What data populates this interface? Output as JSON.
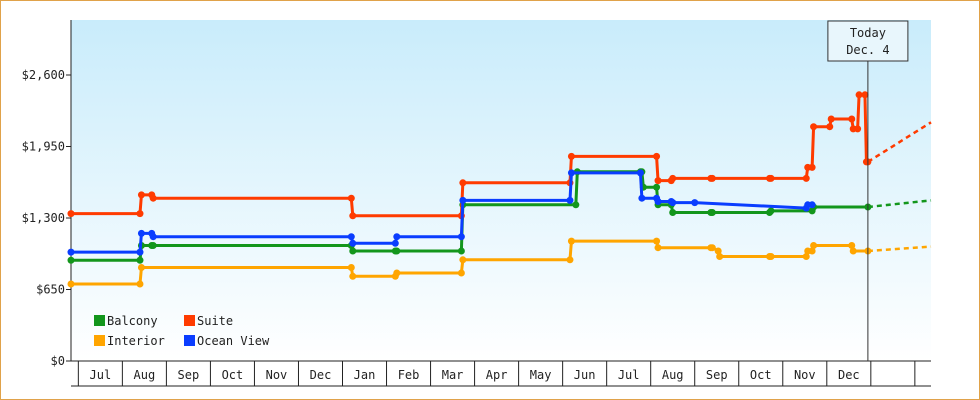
{
  "chart_data": {
    "type": "line",
    "step": true,
    "ylim": [
      0,
      3100
    ],
    "y_ticks": [
      0,
      650,
      1300,
      1950,
      2600
    ],
    "y_tick_labels": [
      "$0",
      "$650",
      "$1,300",
      "$1,950",
      "$2,600"
    ],
    "x_start": "2020-06-09",
    "x_end": "2022-01-16",
    "x_month_boundaries": [
      "2020-06-14",
      "2020-07-14",
      "2020-08-13",
      "2020-09-12",
      "2020-10-12",
      "2020-11-11",
      "2020-12-11",
      "2021-01-10",
      "2021-02-09",
      "2021-03-11",
      "2021-04-10",
      "2021-05-10",
      "2021-06-09",
      "2021-07-09",
      "2021-08-08",
      "2021-09-07",
      "2021-10-07",
      "2021-11-06",
      "2021-12-06",
      "2022-01-05"
    ],
    "x_month_labels": [
      "Jul",
      "Aug",
      "Sep",
      "Oct",
      "Nov",
      "Dec",
      "Jan",
      "Feb",
      "Mar",
      "Apr",
      "May",
      "Jun",
      "Jul",
      "Aug",
      "Sep",
      "Oct",
      "Nov",
      "Dec"
    ],
    "today": {
      "date": "2021-12-04",
      "line1": "Today",
      "line2": "Dec. 4"
    },
    "legend": [
      {
        "name": "Balcony",
        "color": "#13961c"
      },
      {
        "name": "Suite",
        "color": "#ff3b00"
      },
      {
        "name": "Interior",
        "color": "#ffa500"
      },
      {
        "name": "Ocean View",
        "color": "#0a3dff"
      }
    ],
    "series": [
      {
        "name": "Balcony",
        "color": "#13961c",
        "points": [
          [
            "2020-06-09",
            916
          ],
          [
            "2020-07-26",
            916
          ],
          [
            "2020-07-27",
            1050
          ],
          [
            "2020-08-03",
            1050
          ],
          [
            "2020-08-04",
            1050
          ],
          [
            "2020-12-17",
            1050
          ],
          [
            "2020-12-18",
            1000
          ],
          [
            "2021-01-16",
            1000
          ],
          [
            "2021-01-17",
            1000
          ],
          [
            "2021-03-02",
            1000
          ],
          [
            "2021-03-03",
            1420
          ],
          [
            "2021-05-19",
            1420
          ],
          [
            "2021-05-20",
            1720
          ],
          [
            "2021-07-02",
            1720
          ],
          [
            "2021-07-03",
            1720
          ],
          [
            "2021-07-04",
            1580
          ],
          [
            "2021-07-13",
            1580
          ],
          [
            "2021-07-14",
            1420
          ],
          [
            "2021-07-23",
            1420
          ],
          [
            "2021-07-24",
            1350
          ],
          [
            "2021-08-19",
            1350
          ],
          [
            "2021-08-20",
            1350
          ],
          [
            "2021-09-28",
            1350
          ],
          [
            "2021-09-29",
            1365
          ],
          [
            "2021-10-27",
            1365
          ],
          [
            "2021-10-28",
            1400
          ],
          [
            "2021-12-04",
            1400
          ]
        ],
        "forecast": [
          [
            "2021-12-04",
            1400
          ],
          [
            "2022-01-16",
            1460
          ]
        ]
      },
      {
        "name": "Suite",
        "color": "#ff3b00",
        "points": [
          [
            "2020-06-09",
            1340
          ],
          [
            "2020-07-26",
            1340
          ],
          [
            "2020-07-27",
            1510
          ],
          [
            "2020-08-03",
            1510
          ],
          [
            "2020-08-04",
            1480
          ],
          [
            "2020-12-17",
            1480
          ],
          [
            "2020-12-18",
            1320
          ],
          [
            "2021-03-02",
            1320
          ],
          [
            "2021-03-03",
            1620
          ],
          [
            "2021-05-15",
            1620
          ],
          [
            "2021-05-16",
            1860
          ],
          [
            "2021-07-13",
            1860
          ],
          [
            "2021-07-14",
            1640
          ],
          [
            "2021-07-23",
            1640
          ],
          [
            "2021-07-24",
            1660
          ],
          [
            "2021-08-19",
            1660
          ],
          [
            "2021-08-20",
            1660
          ],
          [
            "2021-09-28",
            1660
          ],
          [
            "2021-09-29",
            1660
          ],
          [
            "2021-10-23",
            1660
          ],
          [
            "2021-10-24",
            1760
          ],
          [
            "2021-10-27",
            1760
          ],
          [
            "2021-10-28",
            2130
          ],
          [
            "2021-11-08",
            2130
          ],
          [
            "2021-11-09",
            2200
          ],
          [
            "2021-11-23",
            2200
          ],
          [
            "2021-11-24",
            2110
          ],
          [
            "2021-11-27",
            2110
          ],
          [
            "2021-11-28",
            2420
          ],
          [
            "2021-12-02",
            2420
          ],
          [
            "2021-12-03",
            1810
          ],
          [
            "2021-12-04",
            1810
          ]
        ],
        "forecast": [
          [
            "2021-12-04",
            1810
          ],
          [
            "2022-01-16",
            2170
          ]
        ]
      },
      {
        "name": "Interior",
        "color": "#ffa500",
        "points": [
          [
            "2020-06-09",
            700
          ],
          [
            "2020-07-26",
            700
          ],
          [
            "2020-07-27",
            850
          ],
          [
            "2020-12-17",
            850
          ],
          [
            "2020-12-18",
            770
          ],
          [
            "2021-01-16",
            770
          ],
          [
            "2021-01-17",
            800
          ],
          [
            "2021-03-02",
            800
          ],
          [
            "2021-03-03",
            920
          ],
          [
            "2021-05-15",
            920
          ],
          [
            "2021-05-16",
            1090
          ],
          [
            "2021-07-13",
            1090
          ],
          [
            "2021-07-14",
            1030
          ],
          [
            "2021-08-19",
            1030
          ],
          [
            "2021-08-20",
            1030
          ],
          [
            "2021-08-24",
            1000
          ],
          [
            "2021-08-25",
            950
          ],
          [
            "2021-09-28",
            950
          ],
          [
            "2021-09-29",
            950
          ],
          [
            "2021-10-23",
            950
          ],
          [
            "2021-10-24",
            1000
          ],
          [
            "2021-10-27",
            1000
          ],
          [
            "2021-10-28",
            1050
          ],
          [
            "2021-11-23",
            1050
          ],
          [
            "2021-11-24",
            1000
          ],
          [
            "2021-12-04",
            1000
          ]
        ],
        "forecast": [
          [
            "2021-12-04",
            1000
          ],
          [
            "2022-01-16",
            1040
          ]
        ]
      },
      {
        "name": "Ocean View",
        "color": "#0a3dff",
        "points": [
          [
            "2020-06-09",
            990
          ],
          [
            "2020-07-26",
            990
          ],
          [
            "2020-07-27",
            1160
          ],
          [
            "2020-08-03",
            1160
          ],
          [
            "2020-08-04",
            1130
          ],
          [
            "2020-12-17",
            1130
          ],
          [
            "2020-12-18",
            1070
          ],
          [
            "2021-01-16",
            1070
          ],
          [
            "2021-01-17",
            1130
          ],
          [
            "2021-03-02",
            1130
          ],
          [
            "2021-03-03",
            1460
          ],
          [
            "2021-05-15",
            1460
          ],
          [
            "2021-05-16",
            1710
          ],
          [
            "2021-07-02",
            1710
          ],
          [
            "2021-07-03",
            1480
          ],
          [
            "2021-07-13",
            1480
          ],
          [
            "2021-07-14",
            1450
          ],
          [
            "2021-07-23",
            1450
          ],
          [
            "2021-07-24",
            1440
          ],
          [
            "2021-08-08",
            1440
          ],
          [
            "2021-10-23",
            1390
          ],
          [
            "2021-10-24",
            1420
          ],
          [
            "2021-10-27",
            1420
          ]
        ],
        "forecast": []
      }
    ]
  }
}
